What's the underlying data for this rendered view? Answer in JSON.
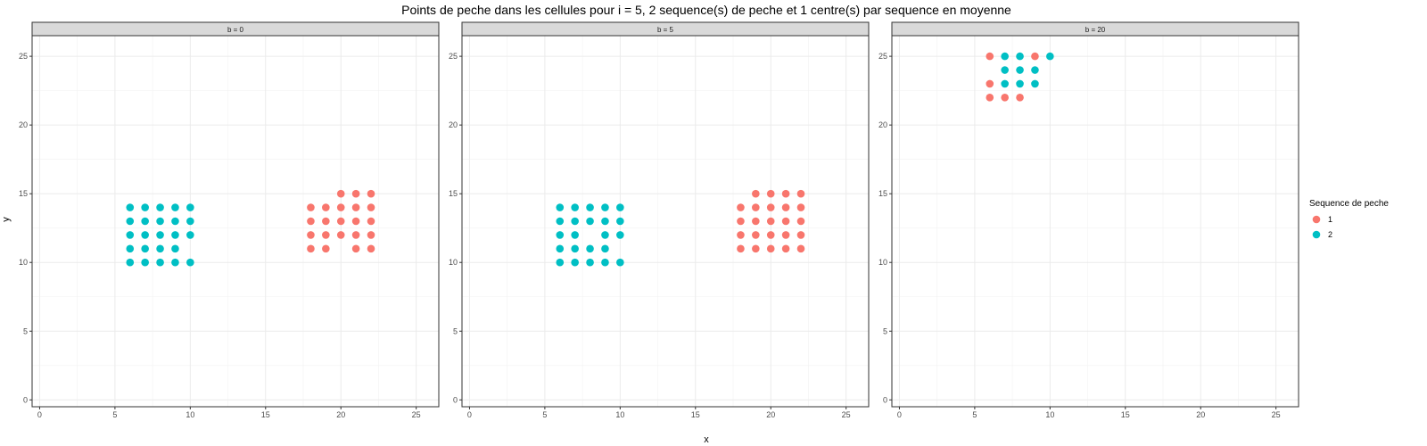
{
  "chart_data": {
    "type": "scatter",
    "title": "Points de peche dans les cellules pour i = 5, 2 sequence(s) de peche et 1 centre(s) par sequence en moyenne",
    "xlabel": "x",
    "ylabel": "y",
    "xlim": [
      -0.5,
      26.5
    ],
    "ylim": [
      -0.5,
      26.5
    ],
    "x_ticks": [
      0,
      5,
      10,
      15,
      20,
      25
    ],
    "y_ticks": [
      0,
      5,
      10,
      15,
      20,
      25
    ],
    "grid": true,
    "legend": {
      "title": "Sequence de peche",
      "position": "right",
      "entries": [
        {
          "label": "1",
          "color": "#F8766D"
        },
        {
          "label": "2",
          "color": "#00BFC4"
        }
      ]
    },
    "panels": [
      {
        "strip": "b = 0",
        "series": [
          {
            "name": "1",
            "points": [
              [
                20,
                15
              ],
              [
                21,
                15
              ],
              [
                22,
                15
              ],
              [
                18,
                14
              ],
              [
                19,
                14
              ],
              [
                20,
                14
              ],
              [
                21,
                14
              ],
              [
                22,
                14
              ],
              [
                18,
                13
              ],
              [
                19,
                13
              ],
              [
                20,
                13
              ],
              [
                21,
                13
              ],
              [
                22,
                13
              ],
              [
                18,
                12
              ],
              [
                19,
                12
              ],
              [
                20,
                12
              ],
              [
                21,
                12
              ],
              [
                22,
                12
              ],
              [
                18,
                11
              ],
              [
                19,
                11
              ],
              [
                21,
                11
              ],
              [
                22,
                11
              ]
            ]
          },
          {
            "name": "2",
            "points": [
              [
                6,
                14
              ],
              [
                7,
                14
              ],
              [
                8,
                14
              ],
              [
                9,
                14
              ],
              [
                10,
                14
              ],
              [
                6,
                13
              ],
              [
                7,
                13
              ],
              [
                8,
                13
              ],
              [
                9,
                13
              ],
              [
                10,
                13
              ],
              [
                6,
                12
              ],
              [
                7,
                12
              ],
              [
                8,
                12
              ],
              [
                9,
                12
              ],
              [
                10,
                12
              ],
              [
                6,
                11
              ],
              [
                7,
                11
              ],
              [
                8,
                11
              ],
              [
                9,
                11
              ],
              [
                6,
                10
              ],
              [
                7,
                10
              ],
              [
                8,
                10
              ],
              [
                9,
                10
              ],
              [
                10,
                10
              ]
            ]
          }
        ]
      },
      {
        "strip": "b = 5",
        "series": [
          {
            "name": "1",
            "points": [
              [
                19,
                15
              ],
              [
                20,
                15
              ],
              [
                21,
                15
              ],
              [
                22,
                15
              ],
              [
                18,
                14
              ],
              [
                19,
                14
              ],
              [
                20,
                14
              ],
              [
                21,
                14
              ],
              [
                22,
                14
              ],
              [
                18,
                13
              ],
              [
                19,
                13
              ],
              [
                20,
                13
              ],
              [
                21,
                13
              ],
              [
                22,
                13
              ],
              [
                18,
                12
              ],
              [
                19,
                12
              ],
              [
                20,
                12
              ],
              [
                21,
                12
              ],
              [
                22,
                12
              ],
              [
                18,
                11
              ],
              [
                19,
                11
              ],
              [
                20,
                11
              ],
              [
                21,
                11
              ],
              [
                22,
                11
              ]
            ]
          },
          {
            "name": "2",
            "points": [
              [
                6,
                14
              ],
              [
                7,
                14
              ],
              [
                8,
                14
              ],
              [
                9,
                14
              ],
              [
                10,
                14
              ],
              [
                6,
                13
              ],
              [
                7,
                13
              ],
              [
                8,
                13
              ],
              [
                9,
                13
              ],
              [
                10,
                13
              ],
              [
                6,
                12
              ],
              [
                7,
                12
              ],
              [
                9,
                12
              ],
              [
                10,
                12
              ],
              [
                6,
                11
              ],
              [
                7,
                11
              ],
              [
                8,
                11
              ],
              [
                9,
                11
              ],
              [
                6,
                10
              ],
              [
                7,
                10
              ],
              [
                8,
                10
              ],
              [
                9,
                10
              ],
              [
                10,
                10
              ]
            ]
          }
        ]
      },
      {
        "strip": "b = 20",
        "series": [
          {
            "name": "1",
            "points": [
              [
                6,
                25
              ],
              [
                9,
                25
              ],
              [
                6,
                23
              ],
              [
                6,
                22
              ],
              [
                7,
                22
              ],
              [
                8,
                22
              ]
            ]
          },
          {
            "name": "2",
            "points": [
              [
                7,
                25
              ],
              [
                8,
                25
              ],
              [
                10,
                25
              ],
              [
                7,
                24
              ],
              [
                8,
                24
              ],
              [
                9,
                24
              ],
              [
                7,
                23
              ],
              [
                8,
                23
              ],
              [
                9,
                23
              ]
            ]
          }
        ]
      }
    ]
  }
}
